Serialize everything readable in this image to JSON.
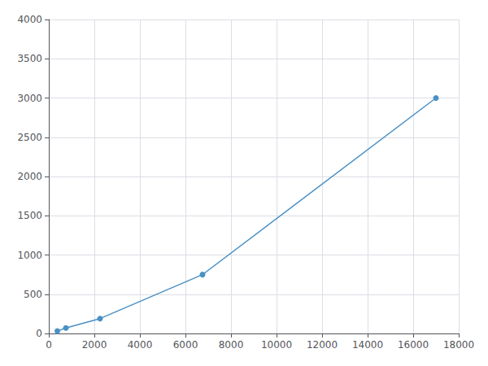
{
  "chart_data": {
    "type": "line",
    "x": [
      375,
      750,
      2250,
      6750,
      17000
    ],
    "values": [
      30,
      70,
      190,
      750,
      3000
    ],
    "color": "#4a90c4",
    "marker": "circle",
    "xlim": [
      0,
      18000
    ],
    "xticks": [
      0,
      2000,
      4000,
      6000,
      8000,
      10000,
      12000,
      14000,
      16000,
      18000
    ],
    "ylim": [
      0,
      4000
    ],
    "yticks": [
      0,
      500,
      1000,
      1500,
      2000,
      2500,
      3000,
      3500,
      4000
    ],
    "grid": true
  }
}
